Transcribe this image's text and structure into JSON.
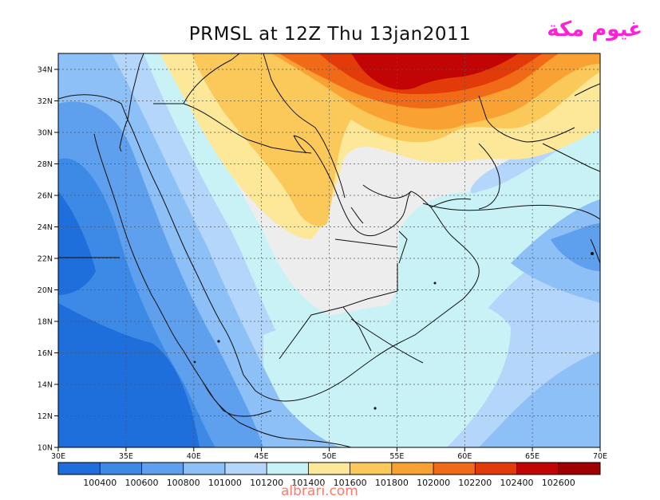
{
  "title": "PRMSL at 12Z Thu 13jan2011",
  "brand_arabic": "غيوم مكة",
  "watermark": "albrari.com",
  "axes": {
    "lon_ticks": [
      "30E",
      "35E",
      "40E",
      "45E",
      "50E",
      "55E",
      "60E",
      "65E",
      "70E"
    ],
    "lat_ticks": [
      "34N",
      "32N",
      "30N",
      "28N",
      "26N",
      "24N",
      "22N",
      "20N",
      "18N",
      "16N",
      "14N",
      "12N",
      "10N"
    ]
  },
  "colorbar": {
    "labels": [
      "100400",
      "100600",
      "100800",
      "101000",
      "101200",
      "101400",
      "101600",
      "101800",
      "102000",
      "102200",
      "102400",
      "102600"
    ],
    "colors": [
      "#1e6edc",
      "#3d8ae6",
      "#5ea0ee",
      "#8cc0f6",
      "#b4d6fa",
      "#c8f2f6",
      "#fde89a",
      "#fbc85a",
      "#f9a233",
      "#f06a18",
      "#e23a08",
      "#c20404",
      "#a00000"
    ]
  },
  "map_colors": {
    "background": "#ededed",
    "outline": "#101010"
  }
}
